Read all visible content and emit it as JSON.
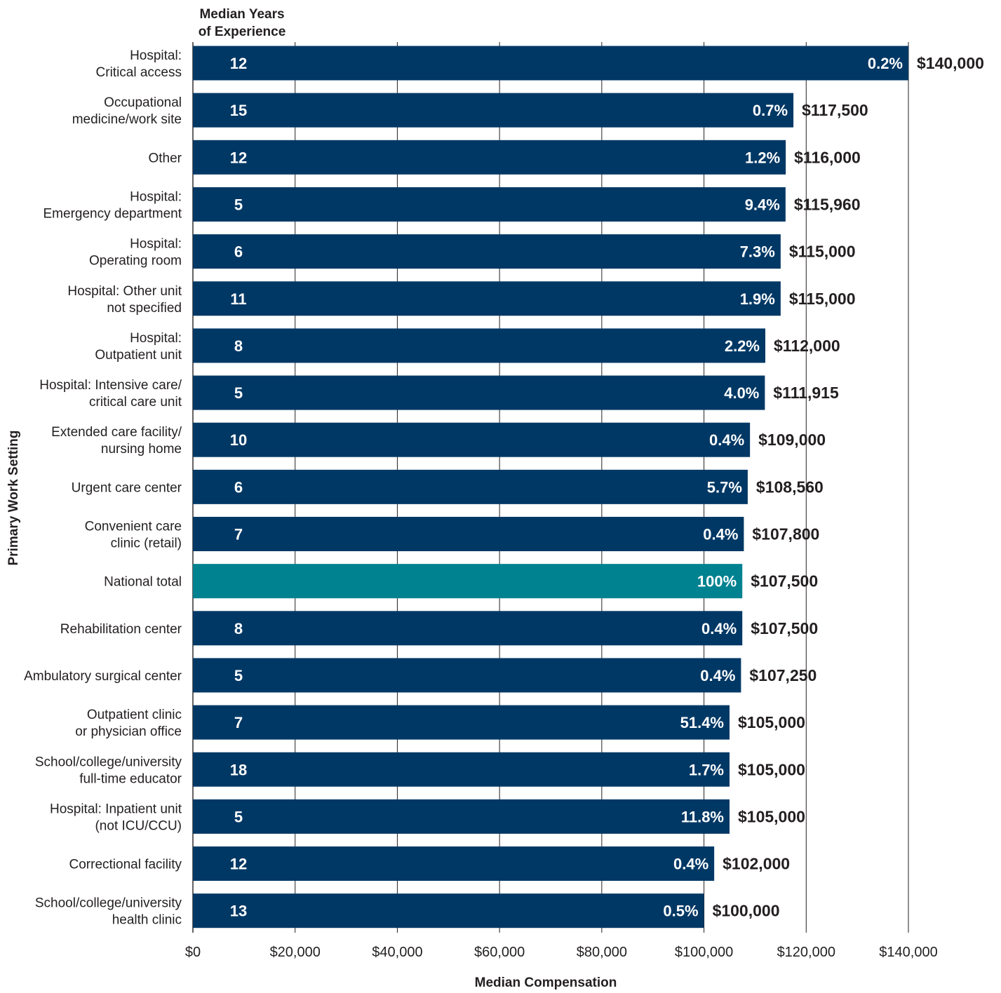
{
  "chart_data": {
    "type": "bar",
    "orientation": "horizontal",
    "ylabel": "Primary Work Setting",
    "xlabel": "Median Compensation",
    "years_header": [
      "Median Years",
      "of Experience"
    ],
    "xlim": [
      0,
      140000
    ],
    "x_ticks": [
      0,
      20000,
      40000,
      60000,
      80000,
      100000,
      120000,
      140000
    ],
    "x_tick_labels": [
      "$0",
      "$20,000",
      "$40,000",
      "$60,000",
      "$80,000",
      "$100,000",
      "$120,000",
      "$140,000"
    ],
    "grid": true,
    "colors": {
      "bar": "#003865",
      "highlight": "#008290",
      "grid": "#231f20"
    },
    "categories": [
      {
        "label": [
          "Hospital:",
          "Critical access"
        ],
        "value": 140000,
        "value_label": "$140,000",
        "pct": "0.2%",
        "years": "12"
      },
      {
        "label": [
          "Occupational",
          "medicine/work site"
        ],
        "value": 117500,
        "value_label": "$117,500",
        "pct": "0.7%",
        "years": "15"
      },
      {
        "label": [
          "Other"
        ],
        "value": 116000,
        "value_label": "$116,000",
        "pct": "1.2%",
        "years": "12"
      },
      {
        "label": [
          "Hospital:",
          "Emergency department"
        ],
        "value": 115960,
        "value_label": "$115,960",
        "pct": "9.4%",
        "years": "5"
      },
      {
        "label": [
          "Hospital:",
          "Operating room"
        ],
        "value": 115000,
        "value_label": "$115,000",
        "pct": "7.3%",
        "years": "6"
      },
      {
        "label": [
          "Hospital: Other unit",
          "not specified"
        ],
        "value": 115000,
        "value_label": "$115,000",
        "pct": "1.9%",
        "years": "11"
      },
      {
        "label": [
          "Hospital:",
          "Outpatient unit"
        ],
        "value": 112000,
        "value_label": "$112,000",
        "pct": "2.2%",
        "years": "8"
      },
      {
        "label": [
          "Hospital: Intensive care/",
          "critical care unit"
        ],
        "value": 111915,
        "value_label": "$111,915",
        "pct": "4.0%",
        "years": "5"
      },
      {
        "label": [
          "Extended care facility/",
          "nursing home"
        ],
        "value": 109000,
        "value_label": "$109,000",
        "pct": "0.4%",
        "years": "10"
      },
      {
        "label": [
          "Urgent care center"
        ],
        "value": 108560,
        "value_label": "$108,560",
        "pct": "5.7%",
        "years": "6"
      },
      {
        "label": [
          "Convenient care",
          "clinic (retail)"
        ],
        "value": 107800,
        "value_label": "$107,800",
        "pct": "0.4%",
        "years": "7"
      },
      {
        "label": [
          "National total"
        ],
        "value": 107500,
        "value_label": "$107,500",
        "pct": "100%",
        "years": "",
        "highlight": true
      },
      {
        "label": [
          "Rehabilitation center"
        ],
        "value": 107500,
        "value_label": "$107,500",
        "pct": "0.4%",
        "years": "8"
      },
      {
        "label": [
          "Ambulatory surgical center"
        ],
        "value": 107250,
        "value_label": "$107,250",
        "pct": "0.4%",
        "years": "5"
      },
      {
        "label": [
          "Outpatient clinic",
          "or physician office"
        ],
        "value": 105000,
        "value_label": "$105,000",
        "pct": "51.4%",
        "years": "7"
      },
      {
        "label": [
          "School/college/university",
          "full-time educator"
        ],
        "value": 105000,
        "value_label": "$105,000",
        "pct": "1.7%",
        "years": "18"
      },
      {
        "label": [
          "Hospital: Inpatient unit",
          "(not ICU/CCU)"
        ],
        "value": 105000,
        "value_label": "$105,000",
        "pct": "11.8%",
        "years": "5"
      },
      {
        "label": [
          "Correctional facility"
        ],
        "value": 102000,
        "value_label": "$102,000",
        "pct": "0.4%",
        "years": "12"
      },
      {
        "label": [
          "School/college/university",
          "health clinic"
        ],
        "value": 100000,
        "value_label": "$100,000",
        "pct": "0.5%",
        "years": "13"
      }
    ]
  }
}
